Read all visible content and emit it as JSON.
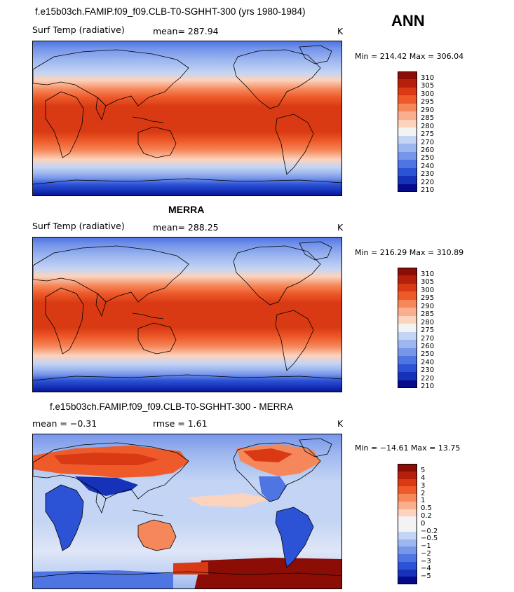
{
  "season": "ANN",
  "panels": [
    {
      "title": "f.e15b03ch.FAMIP.f09_f09.CLB-T0-SGHHT-300 (yrs 1980-1984)",
      "left_label": "Surf Temp (radiative)",
      "stat_label": "mean=  287.94",
      "units": "K",
      "minmax": "Min = 214.42 Max = 306.04",
      "colorbar": {
        "ticks": [
          "310",
          "305",
          "300",
          "295",
          "290",
          "285",
          "280",
          "275",
          "270",
          "260",
          "250",
          "240",
          "230",
          "220",
          "210"
        ],
        "colors": [
          "#8b0d06",
          "#b5200a",
          "#d93a13",
          "#ee5a2a",
          "#f5875a",
          "#f9ae8e",
          "#fcd3bd",
          "#f3f3f3",
          "#c3d4f4",
          "#9cb6ef",
          "#7796ea",
          "#4f75e3",
          "#2c52d6",
          "#1532b8",
          "#060b8a"
        ]
      }
    },
    {
      "title": "MERRA",
      "left_label": "Surf Temp (radiative)",
      "stat_label": "mean=  288.25",
      "units": "K",
      "minmax": "Min = 216.29 Max = 310.89",
      "colorbar": {
        "ticks": [
          "310",
          "305",
          "300",
          "295",
          "290",
          "285",
          "280",
          "275",
          "270",
          "260",
          "250",
          "240",
          "230",
          "220",
          "210"
        ],
        "colors": [
          "#8b0d06",
          "#b5200a",
          "#d93a13",
          "#ee5a2a",
          "#f5875a",
          "#f9ae8e",
          "#fcd3bd",
          "#f3f3f3",
          "#c3d4f4",
          "#9cb6ef",
          "#7796ea",
          "#4f75e3",
          "#2c52d6",
          "#1532b8",
          "#060b8a"
        ]
      }
    },
    {
      "title": "f.e15b03ch.FAMIP.f09_f09.CLB-T0-SGHHT-300 - MERRA",
      "left_label": "mean =   −0.31",
      "stat_label": "rmse =    1.61",
      "units": "K",
      "minmax": "Min = −14.61 Max =  13.75",
      "colorbar": {
        "ticks": [
          "5",
          "4",
          "3",
          "2",
          "1",
          "0.5",
          "0.2",
          "0",
          "−0.2",
          "−0.5",
          "−1",
          "−2",
          "−3",
          "−4",
          "−5"
        ],
        "colors": [
          "#8b0d06",
          "#b5200a",
          "#d93a13",
          "#ee5a2a",
          "#f5875a",
          "#f9ae8e",
          "#fcd3bd",
          "#f3f3f3",
          "#f3f3f3",
          "#c3d4f4",
          "#9cb6ef",
          "#7796ea",
          "#4f75e3",
          "#2c52d6",
          "#1532b8",
          "#060b8a"
        ]
      }
    }
  ]
}
